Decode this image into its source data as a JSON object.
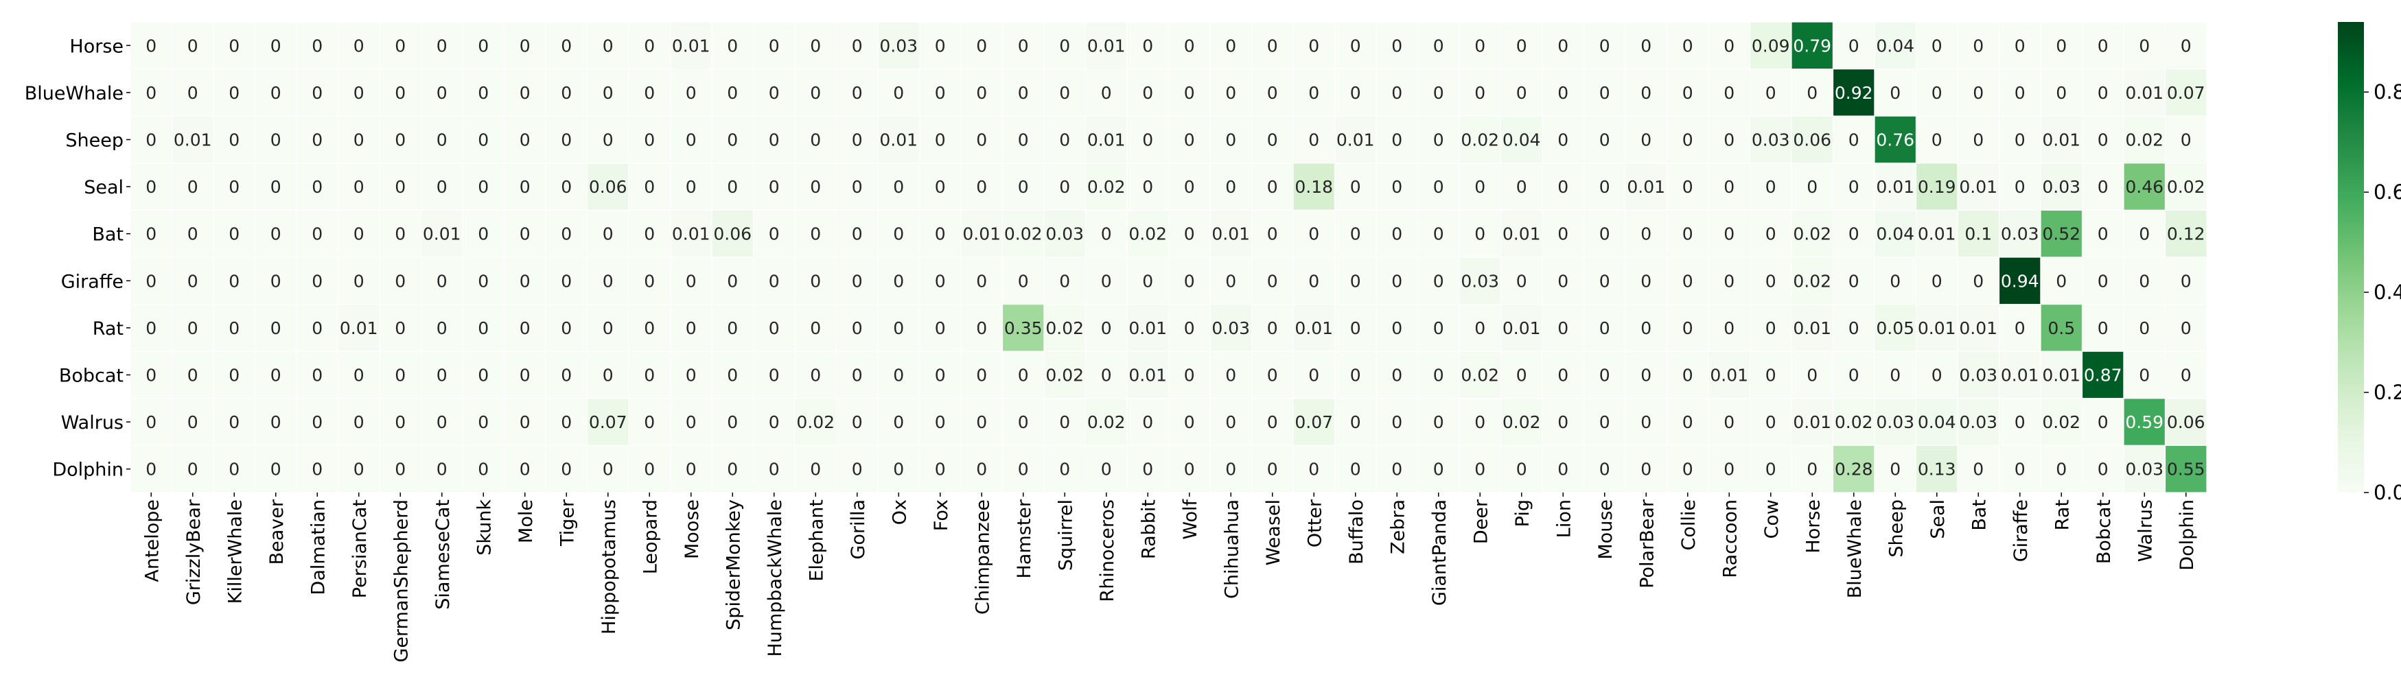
{
  "chart_data": {
    "type": "heatmap",
    "colormap": "Greens",
    "vmin": 0,
    "vmax": 0.94,
    "row_labels": [
      "Horse",
      "BlueWhale",
      "Sheep",
      "Seal",
      "Bat",
      "Giraffe",
      "Rat",
      "Bobcat",
      "Walrus",
      "Dolphin"
    ],
    "col_labels": [
      "Antelope",
      "GrizzlyBear",
      "KillerWhale",
      "Beaver",
      "Dalmatian",
      "PersianCat",
      "GermanShepherd",
      "SiameseCat",
      "Skunk",
      "Mole",
      "Tiger",
      "Hippopotamus",
      "Leopard",
      "Moose",
      "SpiderMonkey",
      "HumpbackWhale",
      "Elephant",
      "Gorilla",
      "Ox",
      "Fox",
      "Chimpanzee",
      "Hamster",
      "Squirrel",
      "Rhinoceros",
      "Rabbit",
      "Wolf",
      "Chihuahua",
      "Weasel",
      "Otter",
      "Buffalo",
      "Zebra",
      "GiantPanda",
      "Deer",
      "Pig",
      "Lion",
      "Mouse",
      "PolarBear",
      "Collie",
      "Raccoon",
      "Cow",
      "Horse",
      "BlueWhale",
      "Sheep",
      "Seal",
      "Bat",
      "Giraffe",
      "Rat",
      "Bobcat",
      "Walrus",
      "Dolphin"
    ],
    "values": [
      [
        0,
        0,
        0,
        0,
        0,
        0,
        0,
        0,
        0,
        0,
        0,
        0,
        0,
        0.01,
        0,
        0,
        0,
        0,
        0.03,
        0,
        0,
        0,
        0,
        0.01,
        0,
        0,
        0,
        0,
        0,
        0,
        0,
        0,
        0,
        0,
        0,
        0,
        0,
        0,
        0,
        0.09,
        0.79,
        0,
        0.04,
        0,
        0,
        0,
        0,
        0,
        0,
        0
      ],
      [
        0,
        0,
        0,
        0,
        0,
        0,
        0,
        0,
        0,
        0,
        0,
        0,
        0,
        0,
        0,
        0,
        0,
        0,
        0,
        0,
        0,
        0,
        0,
        0,
        0,
        0,
        0,
        0,
        0,
        0,
        0,
        0,
        0,
        0,
        0,
        0,
        0,
        0,
        0,
        0,
        0,
        0.92,
        0,
        0,
        0,
        0,
        0,
        0,
        0.01,
        0.07
      ],
      [
        0,
        0.01,
        0,
        0,
        0,
        0,
        0,
        0,
        0,
        0,
        0,
        0,
        0,
        0,
        0,
        0,
        0,
        0,
        0.01,
        0,
        0,
        0,
        0,
        0.01,
        0,
        0,
        0,
        0,
        0,
        0.01,
        0,
        0,
        0.02,
        0.04,
        0,
        0,
        0,
        0,
        0,
        0.03,
        0.06,
        0,
        0.76,
        0,
        0,
        0,
        0.01,
        0,
        0.02,
        0
      ],
      [
        0,
        0,
        0,
        0,
        0,
        0,
        0,
        0,
        0,
        0,
        0,
        0.06,
        0,
        0,
        0,
        0,
        0,
        0,
        0,
        0,
        0,
        0,
        0,
        0.02,
        0,
        0,
        0,
        0,
        0.18,
        0,
        0,
        0,
        0,
        0,
        0,
        0,
        0.01,
        0,
        0,
        0,
        0,
        0,
        0.01,
        0.19,
        0.01,
        0,
        0.03,
        0,
        0.46,
        0.02
      ],
      [
        0,
        0,
        0,
        0,
        0,
        0,
        0,
        0.01,
        0,
        0,
        0,
        0,
        0,
        0.01,
        0.06,
        0,
        0,
        0,
        0,
        0,
        0.01,
        0.02,
        0.03,
        0,
        0.02,
        0,
        0.01,
        0,
        0,
        0,
        0,
        0,
        0,
        0.01,
        0,
        0,
        0,
        0,
        0,
        0,
        0.02,
        0,
        0.04,
        0.01,
        0.1,
        0.03,
        0.52,
        0,
        0,
        0.12
      ],
      [
        0,
        0,
        0,
        0,
        0,
        0,
        0,
        0,
        0,
        0,
        0,
        0,
        0,
        0,
        0,
        0,
        0,
        0,
        0,
        0,
        0,
        0,
        0,
        0,
        0,
        0,
        0,
        0,
        0,
        0,
        0,
        0,
        0.03,
        0,
        0,
        0,
        0,
        0,
        0,
        0,
        0.02,
        0,
        0,
        0,
        0,
        0.94,
        0,
        0,
        0,
        0
      ],
      [
        0,
        0,
        0,
        0,
        0,
        0.01,
        0,
        0,
        0,
        0,
        0,
        0,
        0,
        0,
        0,
        0,
        0,
        0,
        0,
        0,
        0,
        0.35,
        0.02,
        0,
        0.01,
        0,
        0.03,
        0,
        0.01,
        0,
        0,
        0,
        0,
        0.01,
        0,
        0,
        0,
        0,
        0,
        0,
        0.01,
        0,
        0.05,
        0.01,
        0.01,
        0,
        0.5,
        0,
        0,
        0
      ],
      [
        0,
        0,
        0,
        0,
        0,
        0,
        0,
        0,
        0,
        0,
        0,
        0,
        0,
        0,
        0,
        0,
        0,
        0,
        0,
        0,
        0,
        0,
        0.02,
        0,
        0.01,
        0,
        0,
        0,
        0,
        0,
        0,
        0,
        0.02,
        0,
        0,
        0,
        0,
        0,
        0.01,
        0,
        0,
        0,
        0,
        0,
        0.03,
        0.01,
        0.01,
        0.87,
        0,
        0
      ],
      [
        0,
        0,
        0,
        0,
        0,
        0,
        0,
        0,
        0,
        0,
        0,
        0.07,
        0,
        0,
        0,
        0,
        0.02,
        0,
        0,
        0,
        0,
        0,
        0,
        0.02,
        0,
        0,
        0,
        0,
        0.07,
        0,
        0,
        0,
        0,
        0.02,
        0,
        0,
        0,
        0,
        0,
        0,
        0.01,
        0.02,
        0.03,
        0.04,
        0.03,
        0,
        0.02,
        0,
        0.59,
        0.06
      ],
      [
        0,
        0,
        0,
        0,
        0,
        0,
        0,
        0,
        0,
        0,
        0,
        0,
        0,
        0,
        0,
        0,
        0,
        0,
        0,
        0,
        0,
        0,
        0,
        0,
        0,
        0,
        0,
        0,
        0,
        0,
        0,
        0,
        0,
        0,
        0,
        0,
        0,
        0,
        0,
        0,
        0,
        0.28,
        0,
        0.13,
        0,
        0,
        0,
        0,
        0.03,
        0.55
      ]
    ],
    "colorbar_ticks": [
      "0.0",
      "0.2",
      "0.4",
      "0.6",
      "0.8"
    ],
    "colorbar_tick_values": [
      0,
      0.2,
      0.4,
      0.6,
      0.8
    ],
    "title": "",
    "xlabel": "",
    "ylabel": ""
  }
}
